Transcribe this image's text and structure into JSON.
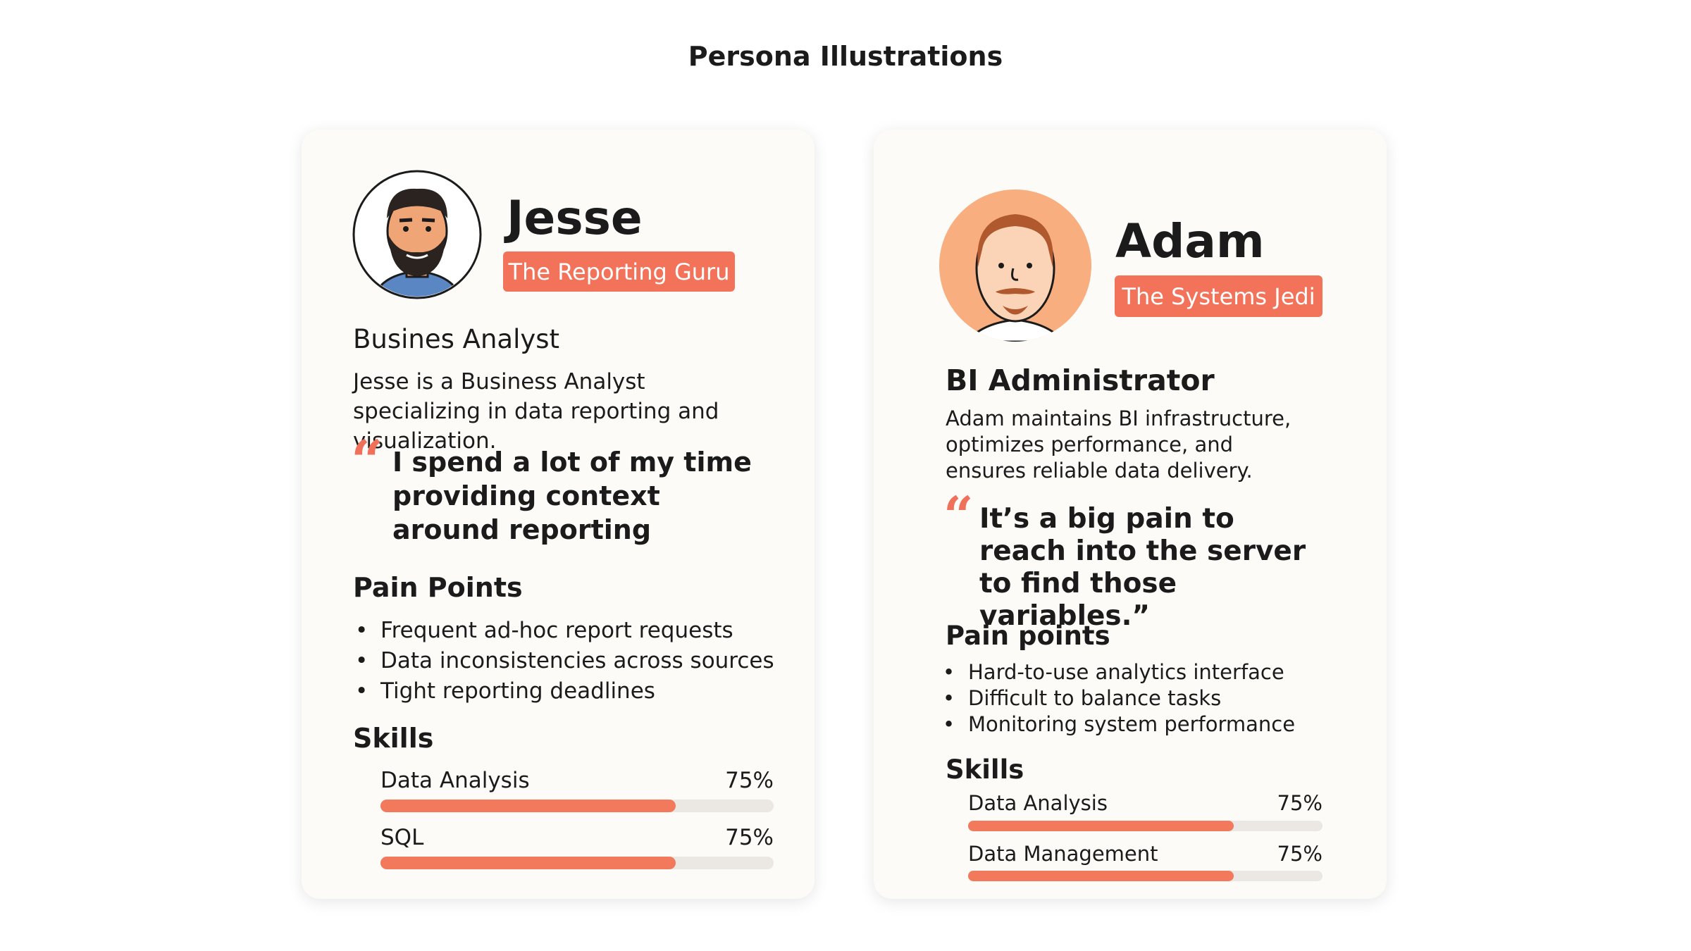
{
  "title": "Persona Illustrations",
  "personas": [
    {
      "name": "Jesse",
      "tagline": "The Reporting Guru",
      "role": "Busines Analyst",
      "description": "Jesse is a Business Analyst specializing in data reporting and visualization.",
      "quote_mark": "“",
      "quote": "I spend a lot of my time providing context around reporting",
      "pain_points_heading": "Pain Points",
      "pain_points": [
        "Frequent ad-hoc report requests",
        "Data inconsistencies across sources",
        "Tight reporting deadlines"
      ],
      "skills_heading": "Skills",
      "skills": [
        {
          "name": "Data Analysis",
          "level": {
            "value": 75,
            "label": "75%"
          }
        },
        {
          "name": "SQL",
          "level": {
            "value": 75,
            "label": "75%"
          }
        }
      ]
    },
    {
      "name": "Adam",
      "tagline": "The Systems Jedi",
      "role": "BI Administrator",
      "description": "Adam maintains BI infrastructure, optimizes performance, and ensures reliable data delivery.",
      "quote_mark": "“",
      "quote": "It’s a big pain to reach into the server to find those variables.”",
      "pain_points_heading": "Pain points",
      "pain_points": [
        "Hard-to-use analytics interface",
        "Difficult to balance tasks",
        "Monitoring system performance"
      ],
      "skills_heading": "Skills",
      "skills": [
        {
          "name": "Data Analysis",
          "level": {
            "value": 75,
            "label": "75%"
          }
        },
        {
          "name": "Data Management",
          "level": {
            "value": 75,
            "label": "75%"
          }
        }
      ]
    }
  ]
}
